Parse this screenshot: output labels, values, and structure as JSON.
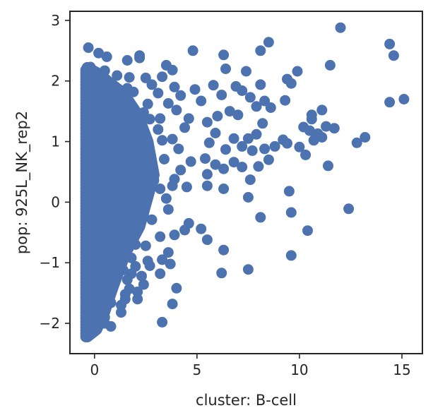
{
  "chart_data": {
    "type": "scatter",
    "title": "",
    "xlabel": "cluster: B-cell",
    "ylabel": "pop: 925L_NK_rep2",
    "xlim": [
      -1.2,
      16
    ],
    "ylim": [
      -2.5,
      3.15
    ],
    "xticks": [
      0,
      5,
      10,
      15
    ],
    "xtick_labels": [
      "0",
      "5",
      "10",
      "15"
    ],
    "yticks": [
      -2,
      -1,
      0,
      1,
      2,
      3
    ],
    "ytick_labels": [
      "−2",
      "−1",
      "0",
      "1",
      "2",
      "3"
    ],
    "grid": false,
    "legend": "none",
    "marker_color": "#4c72b0",
    "series": [
      {
        "points": [
          [
            12.0,
            2.88
          ],
          [
            14.4,
            2.61
          ],
          [
            14.6,
            2.42
          ],
          [
            15.1,
            1.7
          ],
          [
            14.4,
            1.65
          ],
          [
            11.5,
            2.26
          ],
          [
            8.5,
            2.64
          ],
          [
            8.1,
            2.5
          ],
          [
            6.3,
            2.43
          ],
          [
            4.8,
            2.5
          ],
          [
            6.4,
            2.2
          ],
          [
            7.4,
            2.16
          ],
          [
            9.9,
            2.16
          ],
          [
            9.4,
            2.03
          ],
          [
            9.6,
            1.96
          ],
          [
            8.1,
            1.94
          ],
          [
            7.2,
            1.84
          ],
          [
            6.9,
            1.91
          ],
          [
            5.8,
            1.93
          ],
          [
            4.9,
            1.86
          ],
          [
            5.2,
            1.67
          ],
          [
            6.2,
            1.77
          ],
          [
            7.6,
            1.73
          ],
          [
            8.3,
            1.67
          ],
          [
            9.3,
            1.68
          ],
          [
            8.6,
            1.56
          ],
          [
            7.9,
            1.58
          ],
          [
            6.6,
            1.5
          ],
          [
            7.0,
            1.44
          ],
          [
            6.0,
            1.42
          ],
          [
            5.5,
            1.32
          ],
          [
            4.6,
            1.38
          ],
          [
            11.1,
            1.52
          ],
          [
            10.6,
            1.44
          ],
          [
            10.6,
            1.37
          ],
          [
            11.3,
            1.25
          ],
          [
            11.7,
            1.22
          ],
          [
            10.2,
            1.24
          ],
          [
            10.5,
            1.18
          ],
          [
            10.9,
            1.13
          ],
          [
            11.1,
            1.07
          ],
          [
            10.7,
            1.02
          ],
          [
            8.2,
            1.3
          ],
          [
            7.9,
            1.12
          ],
          [
            6.8,
            1.05
          ],
          [
            7.5,
            1.05
          ],
          [
            9.2,
            1.03
          ],
          [
            9.4,
            0.97
          ],
          [
            8.8,
            0.92
          ],
          [
            8.3,
            0.88
          ],
          [
            10.0,
            0.91
          ],
          [
            10.3,
            0.78
          ],
          [
            13.2,
            1.07
          ],
          [
            12.8,
            0.98
          ],
          [
            11.4,
            0.6
          ],
          [
            7.2,
            0.92
          ],
          [
            7.7,
            0.85
          ],
          [
            5.9,
            1.14
          ],
          [
            5.6,
            0.98
          ],
          [
            6.4,
            0.87
          ],
          [
            5.4,
            0.72
          ],
          [
            5.9,
            0.62
          ],
          [
            6.8,
            0.66
          ],
          [
            7.2,
            0.58
          ],
          [
            8.0,
            0.59
          ],
          [
            8.5,
            0.7
          ],
          [
            6.3,
            0.55
          ],
          [
            5.5,
            0.46
          ],
          [
            4.7,
            0.67
          ],
          [
            4.2,
            0.53
          ],
          [
            3.9,
            0.38
          ],
          [
            3.8,
            0.27
          ],
          [
            4.5,
            0.25
          ],
          [
            5.5,
            0.27
          ],
          [
            6.3,
            0.22
          ],
          [
            7.6,
            0.37
          ],
          [
            9.5,
            0.18
          ],
          [
            7.5,
            0.08
          ],
          [
            3.5,
            0.06
          ],
          [
            3.6,
            -0.12
          ],
          [
            9.6,
            -0.17
          ],
          [
            12.4,
            -0.11
          ],
          [
            8.1,
            -0.25
          ],
          [
            4.6,
            -0.35
          ],
          [
            5.2,
            -0.44
          ],
          [
            4.4,
            -0.46
          ],
          [
            3.9,
            -0.54
          ],
          [
            3.2,
            -0.57
          ],
          [
            5.5,
            -0.62
          ],
          [
            6.3,
            -0.79
          ],
          [
            10.4,
            -0.47
          ],
          [
            9.6,
            -0.88
          ],
          [
            3.6,
            -0.83
          ],
          [
            3.3,
            -0.95
          ],
          [
            2.6,
            -0.97
          ],
          [
            3.7,
            -1.02
          ],
          [
            2.7,
            -1.05
          ],
          [
            6.2,
            -1.17
          ],
          [
            7.5,
            -1.11
          ],
          [
            3.2,
            -1.18
          ],
          [
            2.3,
            -1.22
          ],
          [
            1.8,
            -1.18
          ],
          [
            1.6,
            -1.28
          ],
          [
            2.4,
            -1.36
          ],
          [
            2.1,
            -1.48
          ],
          [
            4.0,
            -1.42
          ],
          [
            3.8,
            -1.68
          ],
          [
            2.1,
            -1.6
          ],
          [
            1.7,
            -1.43
          ],
          [
            1.5,
            -1.52
          ],
          [
            1.5,
            -1.6
          ],
          [
            1.3,
            -1.7
          ],
          [
            1.3,
            -1.82
          ],
          [
            0.8,
            -1.66
          ],
          [
            0.6,
            -1.66
          ],
          [
            0.5,
            -1.9
          ],
          [
            3.3,
            -1.98
          ],
          [
            0.8,
            -2.05
          ],
          [
            0.5,
            -2.0
          ],
          [
            -0.3,
            2.55
          ],
          [
            0.2,
            2.46
          ],
          [
            0.6,
            2.4
          ],
          [
            1.6,
            2.34
          ],
          [
            2.2,
            2.38
          ],
          [
            2.2,
            2.42
          ],
          [
            3.5,
            2.26
          ],
          [
            3.8,
            2.18
          ],
          [
            3.3,
            2.07
          ],
          [
            2.5,
            2.05
          ],
          [
            1.7,
            2.06
          ],
          [
            2.8,
            1.94
          ],
          [
            3.9,
            1.9
          ],
          [
            1.6,
            1.88
          ],
          [
            3.1,
            1.8
          ],
          [
            4.2,
            1.76
          ],
          [
            3.6,
            1.63
          ],
          [
            2.6,
            1.62
          ],
          [
            4.0,
            1.52
          ],
          [
            3.2,
            1.38
          ],
          [
            2.4,
            1.48
          ],
          [
            4.4,
            1.23
          ],
          [
            3.1,
            1.2
          ],
          [
            2.5,
            1.1
          ],
          [
            3.8,
            1.04
          ],
          [
            4.1,
            0.88
          ],
          [
            2.7,
            0.82
          ],
          [
            3.4,
            0.71
          ],
          [
            2.2,
            0.57
          ],
          [
            2.9,
            0.36
          ],
          [
            2.0,
            0.18
          ],
          [
            2.4,
            -0.22
          ],
          [
            1.9,
            -0.33
          ],
          [
            2.8,
            -0.29
          ],
          [
            1.5,
            -0.42
          ],
          [
            1.1,
            -0.5
          ],
          [
            1.7,
            -0.62
          ],
          [
            1.2,
            -0.76
          ],
          [
            0.9,
            -0.88
          ],
          [
            0.9,
            -1.08
          ],
          [
            0.6,
            -1.2
          ],
          [
            0.7,
            -1.36
          ],
          [
            0.4,
            -1.52
          ],
          [
            2.0,
            -0.7
          ],
          [
            2.5,
            -0.72
          ],
          [
            1.8,
            -0.92
          ],
          [
            2.0,
            -1.06
          ],
          [
            1.3,
            -0.97
          ],
          [
            0.6,
            -0.38
          ],
          [
            0.9,
            -0.18
          ],
          [
            1.3,
            0.1
          ],
          [
            1.5,
            0.38
          ],
          [
            1.8,
            0.64
          ],
          [
            1.2,
            0.92
          ],
          [
            1.8,
            1.18
          ],
          [
            2.0,
            1.38
          ],
          [
            1.1,
            1.56
          ],
          [
            0.8,
            1.88
          ],
          [
            0.4,
            2.12
          ],
          [
            -0.2,
            2.23
          ],
          [
            0.5,
            2.17
          ],
          [
            1.1,
            2.09
          ],
          [
            1.9,
            1.82
          ],
          [
            1.4,
            1.72
          ],
          [
            2.7,
            1.37
          ],
          [
            3.3,
            1.02
          ],
          [
            0.8,
            0.62
          ],
          [
            0.6,
            0.12
          ],
          [
            0.4,
            -0.72
          ],
          [
            1.0,
            -1.3
          ],
          [
            1.4,
            -1.12
          ],
          [
            2.6,
            0.98
          ],
          [
            1.7,
            0.84
          ],
          [
            1.0,
            0.4
          ],
          [
            0.5,
            0.88
          ],
          [
            3.2,
            0.22
          ]
        ]
      }
    ]
  }
}
